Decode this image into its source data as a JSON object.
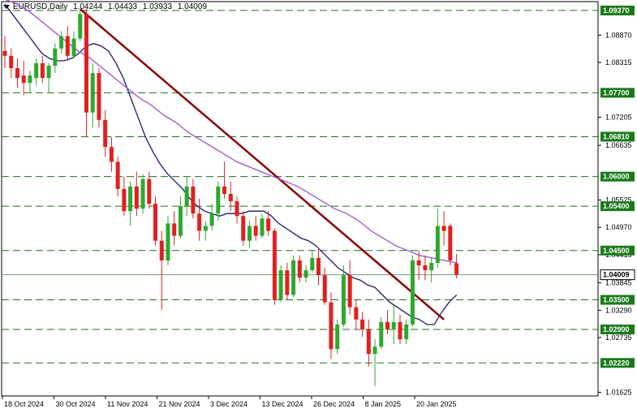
{
  "header": {
    "symbol": "EURUSD,Daily",
    "open": "1.04244",
    "high": "1.04433",
    "low": "1.03933",
    "close": "1.04009"
  },
  "chart_data": {
    "type": "candlestick",
    "ylim": [
      1.0155,
      1.0955
    ],
    "y_tick_labels": [
      "1.08870",
      "1.08315",
      "1.07205",
      "1.06635",
      "1.05525",
      "1.04970",
      "1.04415",
      "1.03845",
      "1.03290",
      "1.02735",
      "1.01625"
    ],
    "x_tick_labels": [
      "18 Oct 2024",
      "30 Oct 2024",
      "11 Nov 2024",
      "21 Nov 2024",
      "3 Dec 2024",
      "13 Dec 2024",
      "26 Dec 2024",
      "8 Jan 2025",
      "20 Jan 2025"
    ],
    "levels": [
      "1.09370",
      "1.07700",
      "1.06810",
      "1.06000",
      "1.05400",
      "1.04500",
      "1.03500",
      "1.02900",
      "1.02220"
    ],
    "current_price": "1.04009",
    "colors": {
      "up": "#2ea82e",
      "down": "#e02020",
      "level": "#1f6e1f",
      "trendline": "#8b0000",
      "ma_fast": "#191970",
      "ma_slow": "#9a4fd6",
      "current": "#7a9a7a"
    },
    "candles": [
      {
        "o": 1.0855,
        "h": 1.0885,
        "l": 1.082,
        "c": 1.0845
      },
      {
        "o": 1.0845,
        "h": 1.086,
        "l": 1.08,
        "c": 1.082
      },
      {
        "o": 1.082,
        "h": 1.084,
        "l": 1.078,
        "c": 1.08
      },
      {
        "o": 1.0805,
        "h": 1.0835,
        "l": 1.0765,
        "c": 1.079
      },
      {
        "o": 1.079,
        "h": 1.0815,
        "l": 1.077,
        "c": 1.0805
      },
      {
        "o": 1.08,
        "h": 1.084,
        "l": 1.0785,
        "c": 1.083
      },
      {
        "o": 1.083,
        "h": 1.0845,
        "l": 1.079,
        "c": 1.08
      },
      {
        "o": 1.08,
        "h": 1.083,
        "l": 1.077,
        "c": 1.0825
      },
      {
        "o": 1.0825,
        "h": 1.087,
        "l": 1.081,
        "c": 1.086
      },
      {
        "o": 1.086,
        "h": 1.0895,
        "l": 1.085,
        "c": 1.0885
      },
      {
        "o": 1.0885,
        "h": 1.0905,
        "l": 1.0835,
        "c": 1.0845
      },
      {
        "o": 1.0845,
        "h": 1.0895,
        "l": 1.084,
        "c": 1.088
      },
      {
        "o": 1.088,
        "h": 1.094,
        "l": 1.0875,
        "c": 1.093
      },
      {
        "o": 1.093,
        "h": 1.094,
        "l": 1.068,
        "c": 1.073
      },
      {
        "o": 1.073,
        "h": 1.083,
        "l": 1.07,
        "c": 1.081
      },
      {
        "o": 1.081,
        "h": 1.082,
        "l": 1.07,
        "c": 1.0715
      },
      {
        "o": 1.0715,
        "h": 1.0735,
        "l": 1.064,
        "c": 1.066
      },
      {
        "o": 1.066,
        "h": 1.068,
        "l": 1.061,
        "c": 1.063
      },
      {
        "o": 1.063,
        "h": 1.064,
        "l": 1.056,
        "c": 1.0575
      },
      {
        "o": 1.0575,
        "h": 1.06,
        "l": 1.052,
        "c": 1.053
      },
      {
        "o": 1.053,
        "h": 1.059,
        "l": 1.05,
        "c": 1.058
      },
      {
        "o": 1.058,
        "h": 1.061,
        "l": 1.052,
        "c": 1.0535
      },
      {
        "o": 1.0535,
        "h": 1.0605,
        "l": 1.0525,
        "c": 1.0595
      },
      {
        "o": 1.0595,
        "h": 1.061,
        "l": 1.0535,
        "c": 1.0545
      },
      {
        "o": 1.0545,
        "h": 1.056,
        "l": 1.046,
        "c": 1.047
      },
      {
        "o": 1.047,
        "h": 1.049,
        "l": 1.033,
        "c": 1.043
      },
      {
        "o": 1.043,
        "h": 1.052,
        "l": 1.042,
        "c": 1.0505
      },
      {
        "o": 1.0505,
        "h": 1.053,
        "l": 1.046,
        "c": 1.048
      },
      {
        "o": 1.048,
        "h": 1.056,
        "l": 1.0475,
        "c": 1.054
      },
      {
        "o": 1.054,
        "h": 1.06,
        "l": 1.052,
        "c": 1.058
      },
      {
        "o": 1.058,
        "h": 1.0595,
        "l": 1.0515,
        "c": 1.0525
      },
      {
        "o": 1.0525,
        "h": 1.0555,
        "l": 1.047,
        "c": 1.049
      },
      {
        "o": 1.049,
        "h": 1.051,
        "l": 1.047,
        "c": 1.05
      },
      {
        "o": 1.05,
        "h": 1.0545,
        "l": 1.049,
        "c": 1.0525
      },
      {
        "o": 1.0525,
        "h": 1.059,
        "l": 1.051,
        "c": 1.058
      },
      {
        "o": 1.058,
        "h": 1.063,
        "l": 1.0555,
        "c": 1.0565
      },
      {
        "o": 1.0565,
        "h": 1.059,
        "l": 1.053,
        "c": 1.055
      },
      {
        "o": 1.055,
        "h": 1.056,
        "l": 1.0505,
        "c": 1.052
      },
      {
        "o": 1.052,
        "h": 1.053,
        "l": 1.046,
        "c": 1.047
      },
      {
        "o": 1.047,
        "h": 1.051,
        "l": 1.0455,
        "c": 1.05
      },
      {
        "o": 1.05,
        "h": 1.052,
        "l": 1.047,
        "c": 1.048
      },
      {
        "o": 1.048,
        "h": 1.0525,
        "l": 1.0475,
        "c": 1.0515
      },
      {
        "o": 1.0515,
        "h": 1.053,
        "l": 1.048,
        "c": 1.049
      },
      {
        "o": 1.049,
        "h": 1.0495,
        "l": 1.034,
        "c": 1.035
      },
      {
        "o": 1.035,
        "h": 1.042,
        "l": 1.0345,
        "c": 1.041
      },
      {
        "o": 1.041,
        "h": 1.0425,
        "l": 1.035,
        "c": 1.036
      },
      {
        "o": 1.036,
        "h": 1.044,
        "l": 1.0355,
        "c": 1.043
      },
      {
        "o": 1.043,
        "h": 1.044,
        "l": 1.0385,
        "c": 1.0395
      },
      {
        "o": 1.0395,
        "h": 1.042,
        "l": 1.0385,
        "c": 1.041
      },
      {
        "o": 1.041,
        "h": 1.045,
        "l": 1.0405,
        "c": 1.0435
      },
      {
        "o": 1.0435,
        "h": 1.0455,
        "l": 1.038,
        "c": 1.04
      },
      {
        "o": 1.04,
        "h": 1.0415,
        "l": 1.034,
        "c": 1.0345
      },
      {
        "o": 1.0345,
        "h": 1.0365,
        "l": 1.023,
        "c": 1.025
      },
      {
        "o": 1.025,
        "h": 1.031,
        "l": 1.024,
        "c": 1.03
      },
      {
        "o": 1.03,
        "h": 1.042,
        "l": 1.0295,
        "c": 1.04
      },
      {
        "o": 1.04,
        "h": 1.043,
        "l": 1.032,
        "c": 1.0335
      },
      {
        "o": 1.0335,
        "h": 1.035,
        "l": 1.029,
        "c": 1.031
      },
      {
        "o": 1.031,
        "h": 1.0325,
        "l": 1.0275,
        "c": 1.029
      },
      {
        "o": 1.029,
        "h": 1.031,
        "l": 1.0215,
        "c": 1.024
      },
      {
        "o": 1.024,
        "h": 1.027,
        "l": 1.0175,
        "c": 1.0255
      },
      {
        "o": 1.0255,
        "h": 1.0315,
        "l": 1.025,
        "c": 1.0305
      },
      {
        "o": 1.0305,
        "h": 1.033,
        "l": 1.028,
        "c": 1.029
      },
      {
        "o": 1.029,
        "h": 1.034,
        "l": 1.026,
        "c": 1.0305
      },
      {
        "o": 1.0305,
        "h": 1.032,
        "l": 1.026,
        "c": 1.027
      },
      {
        "o": 1.027,
        "h": 1.031,
        "l": 1.026,
        "c": 1.03
      },
      {
        "o": 1.03,
        "h": 1.044,
        "l": 1.0295,
        "c": 1.043
      },
      {
        "o": 1.043,
        "h": 1.045,
        "l": 1.039,
        "c": 1.042
      },
      {
        "o": 1.042,
        "h": 1.044,
        "l": 1.039,
        "c": 1.041
      },
      {
        "o": 1.041,
        "h": 1.0435,
        "l": 1.0385,
        "c": 1.0425
      },
      {
        "o": 1.0425,
        "h": 1.0535,
        "l": 1.0415,
        "c": 1.05
      },
      {
        "o": 1.05,
        "h": 1.053,
        "l": 1.046,
        "c": 1.049
      },
      {
        "o": 1.05,
        "h": 1.0505,
        "l": 1.042,
        "c": 1.043
      },
      {
        "o": 1.0424,
        "h": 1.0443,
        "l": 1.0393,
        "c": 1.0401
      }
    ],
    "ma_fast": [
      1.095,
      1.093,
      1.091,
      1.089,
      1.087,
      1.085,
      1.084,
      1.0835,
      1.0835,
      1.084,
      1.085,
      1.0865,
      1.087,
      1.0865,
      1.0855,
      1.083,
      1.08,
      1.076,
      1.072,
      1.068,
      1.065,
      1.0625,
      1.0605,
      1.059,
      1.0575,
      1.0555,
      1.054,
      1.053,
      1.0525,
      1.052,
      1.0525,
      1.0525,
      1.0525,
      1.053,
      1.053,
      1.053,
      1.052,
      1.0505,
      1.0495,
      1.0485,
      1.0475,
      1.047,
      1.046,
      1.0445,
      1.043,
      1.0415,
      1.0405,
      1.0395,
      1.039,
      1.038,
      1.0375,
      1.036,
      1.0345,
      1.0335,
      1.0325,
      1.0315,
      1.031,
      1.03,
      1.03,
      1.0325,
      1.0345,
      1.036
    ],
    "ma_slow": [
      1.096,
      1.095,
      1.0935,
      1.0915,
      1.0895,
      1.0875,
      1.0855,
      1.084,
      1.082,
      1.08,
      1.078,
      1.076,
      1.0745,
      1.0725,
      1.071,
      1.069,
      1.0675,
      1.066,
      1.0645,
      1.063,
      1.062,
      1.061,
      1.06,
      1.059,
      1.058,
      1.0565,
      1.055,
      1.0535,
      1.0525,
      1.051,
      1.049,
      1.0475,
      1.046,
      1.045,
      1.044,
      1.0435,
      1.043,
      1.0425
    ]
  }
}
